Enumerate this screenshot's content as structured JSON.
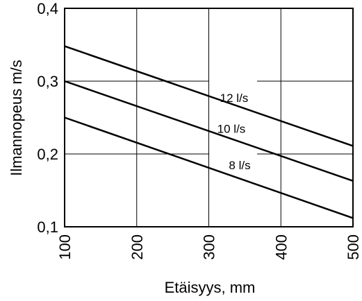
{
  "chart_data": {
    "type": "line",
    "xlabel": "Etäisyys, mm",
    "ylabel": "Ilmannopeus m/s",
    "xlim": [
      100,
      500
    ],
    "ylim": [
      0.1,
      0.4
    ],
    "x_ticks": [
      100,
      200,
      300,
      400,
      500
    ],
    "x_tick_labels": [
      "100",
      "200",
      "300",
      "400",
      "500"
    ],
    "y_ticks": [
      0.1,
      0.2,
      0.3,
      0.4
    ],
    "y_tick_labels": [
      "0,1",
      "0,2",
      "0,3",
      "0,4"
    ],
    "grid": true,
    "line_color": "#000000",
    "series": [
      {
        "name": "12 l/s",
        "x": [
          100,
          500
        ],
        "values": [
          0.348,
          0.211
        ]
      },
      {
        "name": "10 l/s",
        "x": [
          100,
          500
        ],
        "values": [
          0.3,
          0.163
        ]
      },
      {
        "name": "8 l/s",
        "x": [
          100,
          500
        ],
        "values": [
          0.25,
          0.112
        ]
      }
    ]
  }
}
